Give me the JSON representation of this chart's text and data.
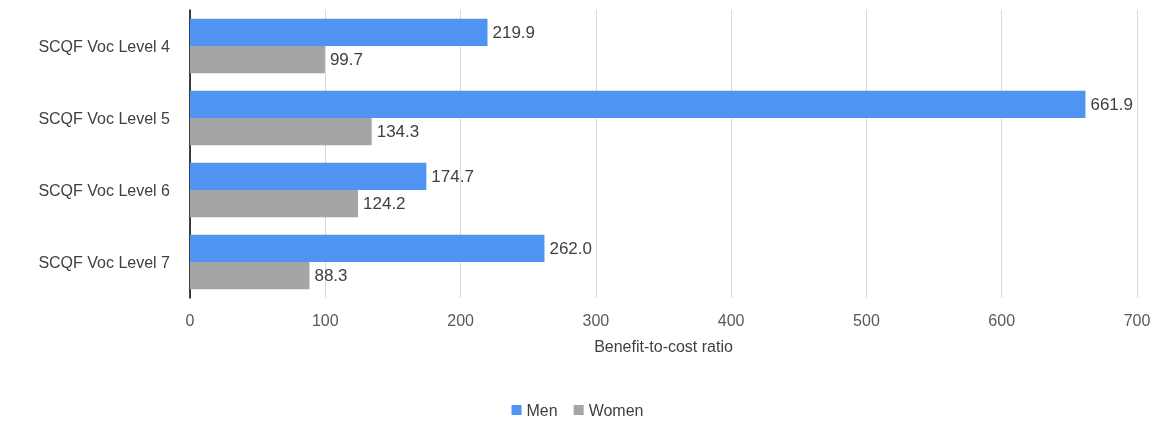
{
  "chart_data": {
    "type": "bar",
    "orientation": "horizontal",
    "xlabel": "Benefit-to-cost ratio",
    "categories": [
      "SCQF Voc Level 4",
      "SCQF Voc Level 5",
      "SCQF Voc Level 6",
      "SCQF Voc Level 7"
    ],
    "series": [
      {
        "name": "Men",
        "color": "#4f94f0",
        "values": [
          219.9,
          661.9,
          174.7,
          262.0
        ],
        "value_labels": [
          "219.9",
          "661.9",
          "174.7",
          "262.0"
        ]
      },
      {
        "name": "Women",
        "color": "#a5a5a5",
        "values": [
          99.7,
          134.3,
          124.2,
          88.3
        ],
        "value_labels": [
          "99.7",
          "134.3",
          "124.2",
          "88.3"
        ]
      }
    ],
    "xlim": [
      0,
      700
    ],
    "xticks": [
      0,
      100,
      200,
      300,
      400,
      500,
      600,
      700
    ],
    "grid": "x",
    "legend": "bottom"
  }
}
